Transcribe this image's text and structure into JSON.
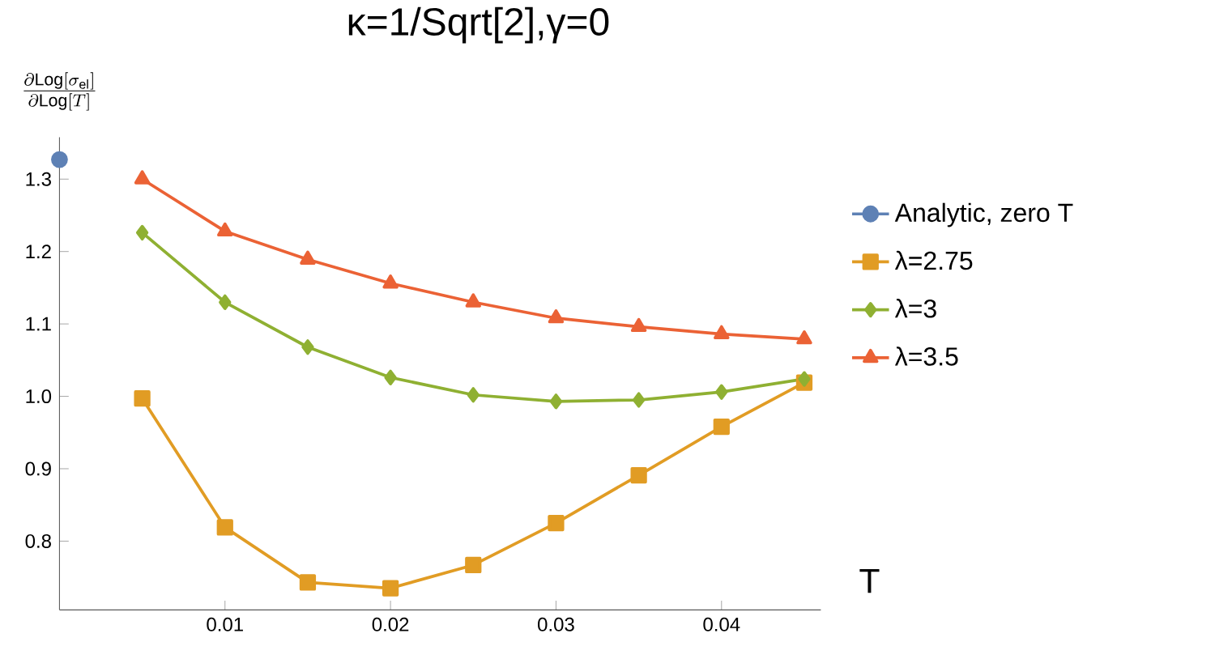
{
  "chart_data": {
    "type": "line",
    "title": "κ=1/Sqrt[2],γ=0",
    "xlabel": "T",
    "ylabel": "\\frac{\\partial\\mathrm{Log}[\\sigma_{\\mathrm{el}}]}{\\partial\\mathrm{Log}[T]}",
    "x": [
      0.005,
      0.01,
      0.015,
      0.02,
      0.025,
      0.03,
      0.035,
      0.04,
      0.045
    ],
    "series": [
      {
        "name": "Analytic, zero T",
        "color": "#5e81b5",
        "marker": "circle",
        "x": [
          0
        ],
        "values": [
          1.327
        ]
      },
      {
        "name": "λ=2.75",
        "color": "#e19c24",
        "marker": "square",
        "values": [
          0.997,
          0.819,
          0.743,
          0.735,
          0.767,
          0.825,
          0.891,
          0.958,
          1.019
        ]
      },
      {
        "name": "λ=3",
        "color": "#8fb032",
        "marker": "diamond",
        "values": [
          1.226,
          1.13,
          1.068,
          1.026,
          1.002,
          0.993,
          0.995,
          1.006,
          1.024
        ]
      },
      {
        "name": "λ=3.5",
        "color": "#eb6235",
        "marker": "triangle",
        "values": [
          1.3,
          1.228,
          1.189,
          1.156,
          1.13,
          1.108,
          1.096,
          1.086,
          1.079
        ]
      }
    ],
    "xlim": [
      0,
      0.046
    ],
    "ylim": [
      0.705,
      1.358
    ],
    "xticks": [
      0.01,
      0.02,
      0.03,
      0.04
    ],
    "yticks": [
      0.8,
      0.9,
      {
        "value": 1.0,
        "label": "1.0"
      },
      1.1,
      1.2,
      1.3
    ],
    "legend": "right",
    "line_style": "solid"
  }
}
